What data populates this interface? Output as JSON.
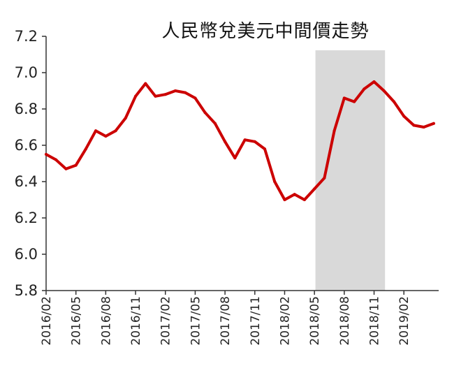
{
  "chart_data": {
    "type": "line",
    "title": "人民幣兌美元中間價走勢",
    "xlabel": "",
    "ylabel": "",
    "ylim": [
      5.8,
      7.2
    ],
    "yticks": [
      "5.8",
      "6.0",
      "6.2",
      "6.4",
      "6.6",
      "6.8",
      "7.0",
      "7.2"
    ],
    "xticks": [
      "2016/02",
      "2016/05",
      "2016/08",
      "2016/11",
      "2017/02",
      "2017/05",
      "2017/08",
      "2017/11",
      "2018/02",
      "2018/05",
      "2018/08",
      "2018/11",
      "2019/02"
    ],
    "shaded_range": [
      "2018/05",
      "2018/12"
    ],
    "grid": false,
    "legend": "none",
    "colors": {
      "line": "#cc0000",
      "shade": "#d9d9d9",
      "axis": "#333333"
    },
    "series": [
      {
        "x": [
          "2016/02",
          "2016/03",
          "2016/04",
          "2016/05",
          "2016/06",
          "2016/07",
          "2016/08",
          "2016/09",
          "2016/10",
          "2016/11",
          "2016/12",
          "2017/01",
          "2017/02",
          "2017/03",
          "2017/04",
          "2017/05",
          "2017/06",
          "2017/07",
          "2017/08",
          "2017/09",
          "2017/10",
          "2017/11",
          "2017/12",
          "2018/01",
          "2018/02",
          "2018/03",
          "2018/04",
          "2018/05",
          "2018/06",
          "2018/07",
          "2018/08",
          "2018/09",
          "2018/10",
          "2018/11",
          "2018/12",
          "2019/01",
          "2019/02",
          "2019/03",
          "2019/04",
          "2019/05"
        ],
        "values": [
          6.55,
          6.52,
          6.47,
          6.49,
          6.58,
          6.68,
          6.65,
          6.68,
          6.75,
          6.87,
          6.94,
          6.87,
          6.88,
          6.9,
          6.89,
          6.86,
          6.78,
          6.72,
          6.62,
          6.53,
          6.63,
          6.62,
          6.58,
          6.4,
          6.3,
          6.33,
          6.3,
          6.36,
          6.42,
          6.68,
          6.86,
          6.84,
          6.91,
          6.95,
          6.9,
          6.84,
          6.76,
          6.71,
          6.7,
          6.72
        ]
      }
    ]
  }
}
